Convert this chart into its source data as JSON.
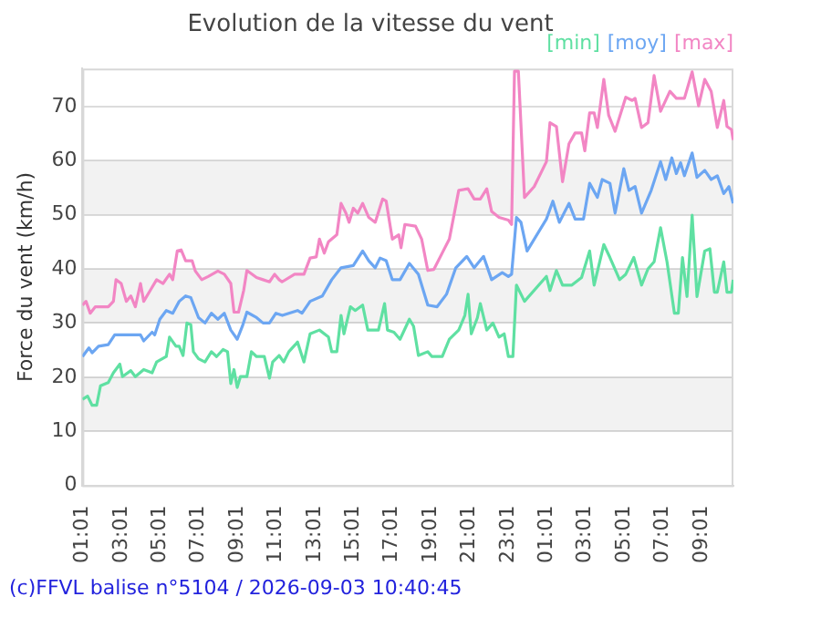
{
  "chart_data": {
    "type": "line",
    "title": "Evolution de la vitesse du vent",
    "ylabel": "Force du vent (km/h)",
    "annotations": [
      "(c)FFVL balise n°5104 / 2026-09-03 10:40:45"
    ],
    "xlim": [
      "2026-09-02T01:01",
      "2026-09-03T10:40"
    ],
    "xticks": [
      {
        "value": "2026-09-02T01:01",
        "label": "01:01"
      },
      {
        "value": "2026-09-02T03:01",
        "label": "03:01"
      },
      {
        "value": "2026-09-02T05:01",
        "label": "05:01"
      },
      {
        "value": "2026-09-02T07:01",
        "label": "07:01"
      },
      {
        "value": "2026-09-02T09:01",
        "label": "09:01"
      },
      {
        "value": "2026-09-02T11:01",
        "label": "11:01"
      },
      {
        "value": "2026-09-02T13:01",
        "label": "13:01"
      },
      {
        "value": "2026-09-02T15:01",
        "label": "15:01"
      },
      {
        "value": "2026-09-02T17:01",
        "label": "17:01"
      },
      {
        "value": "2026-09-02T19:01",
        "label": "19:01"
      },
      {
        "value": "2026-09-02T21:01",
        "label": "21:01"
      },
      {
        "value": "2026-09-02T23:01",
        "label": "23:01"
      },
      {
        "value": "2026-09-03T01:01",
        "label": "01:01"
      },
      {
        "value": "2026-09-03T03:01",
        "label": "03:01"
      },
      {
        "value": "2026-09-03T05:01",
        "label": "05:01"
      },
      {
        "value": "2026-09-03T07:01",
        "label": "07:01"
      },
      {
        "value": "2026-09-03T09:01",
        "label": "09:01"
      }
    ],
    "ylim": [
      0,
      77
    ],
    "yticks": [
      0,
      10,
      20,
      30,
      40,
      50,
      60,
      70
    ],
    "grid": "y",
    "legend": "top right",
    "marker": "none",
    "line_style": "solid",
    "series": [
      {
        "name": "[min]",
        "color": "#5fe0a2",
        "x": [
          "2026-09-02T01:01",
          "2026-09-02T01:17",
          "2026-09-02T01:31",
          "2026-09-02T01:45",
          "2026-09-02T01:57",
          "2026-09-02T02:21",
          "2026-09-02T02:37",
          "2026-09-02T02:57",
          "2026-09-02T03:05",
          "2026-09-02T03:31",
          "2026-09-02T03:45",
          "2026-09-02T04:11",
          "2026-09-02T04:37",
          "2026-09-02T04:51",
          "2026-09-02T05:21",
          "2026-09-02T05:31",
          "2026-09-02T05:51",
          "2026-09-02T06:01",
          "2026-09-02T06:13",
          "2026-09-02T06:25",
          "2026-09-02T06:37",
          "2026-09-02T06:45",
          "2026-09-02T07:01",
          "2026-09-02T07:21",
          "2026-09-02T07:41",
          "2026-09-02T07:57",
          "2026-09-02T08:17",
          "2026-09-02T08:31",
          "2026-09-02T08:41",
          "2026-09-02T08:51",
          "2026-09-02T09:01",
          "2026-09-02T09:11",
          "2026-09-02T09:31",
          "2026-09-02T09:45",
          "2026-09-02T10:01",
          "2026-09-02T10:25",
          "2026-09-02T10:41",
          "2026-09-02T10:51",
          "2026-09-02T11:11",
          "2026-09-02T11:25",
          "2026-09-02T11:41",
          "2026-09-02T12:01",
          "2026-09-02T12:08",
          "2026-09-02T12:28",
          "2026-09-02T12:47",
          "2026-09-02T13:16",
          "2026-09-02T13:44",
          "2026-09-02T13:54",
          "2026-09-02T14:10",
          "2026-09-02T14:23",
          "2026-09-02T14:32",
          "2026-09-02T14:52",
          "2026-09-02T15:07",
          "2026-09-02T15:30",
          "2026-09-02T15:46",
          "2026-09-02T16:19",
          "2026-09-02T16:38",
          "2026-09-02T16:47",
          "2026-09-02T17:07",
          "2026-09-02T17:26",
          "2026-09-02T17:55",
          "2026-09-02T18:08",
          "2026-09-02T18:23",
          "2026-09-02T18:52",
          "2026-09-02T19:05",
          "2026-09-02T19:37",
          "2026-09-02T19:59",
          "2026-09-02T20:28",
          "2026-09-02T20:47",
          "2026-09-02T20:57",
          "2026-09-02T21:07",
          "2026-09-02T21:26",
          "2026-09-02T21:35",
          "2026-09-02T21:55",
          "2026-09-02T22:14",
          "2026-09-02T22:33",
          "2026-09-02T22:49",
          "2026-09-02T23:02",
          "2026-09-02T23:16",
          "2026-09-02T23:27",
          "2026-09-02T23:52",
          "2026-09-03T01:00",
          "2026-09-03T01:11",
          "2026-09-03T01:31",
          "2026-09-03T01:50",
          "2026-09-03T02:19",
          "2026-09-03T02:49",
          "2026-09-03T03:14",
          "2026-09-03T03:28",
          "2026-09-03T03:58",
          "2026-09-03T04:17",
          "2026-09-03T04:47",
          "2026-09-03T05:06",
          "2026-09-03T05:31",
          "2026-09-03T05:55",
          "2026-09-03T06:15",
          "2026-09-03T06:34",
          "2026-09-03T06:54",
          "2026-09-03T07:14",
          "2026-09-03T07:37",
          "2026-09-03T07:49",
          "2026-09-03T08:02",
          "2026-09-03T08:16",
          "2026-09-03T08:32",
          "2026-09-03T08:47",
          "2026-09-03T09:11",
          "2026-09-03T09:27",
          "2026-09-03T09:41",
          "2026-09-03T09:50",
          "2026-09-03T10:10",
          "2026-09-03T10:20",
          "2026-09-03T10:34",
          "2026-09-03T10:39"
        ],
        "values": [
          15.9,
          16.5,
          14.8,
          14.8,
          18.4,
          19,
          20.8,
          22.4,
          20.1,
          21.2,
          20.1,
          21.4,
          20.8,
          22.8,
          23.8,
          27.4,
          25.7,
          25.7,
          24,
          30,
          29.7,
          24.7,
          23.4,
          22.8,
          24.7,
          23.8,
          25.1,
          24.7,
          18.8,
          21.4,
          18.1,
          20.1,
          20.1,
          24.7,
          23.8,
          23.8,
          19.8,
          22.8,
          24,
          22.8,
          24.7,
          26,
          26.5,
          22.8,
          28,
          28.7,
          27.4,
          24.7,
          24.7,
          31.4,
          28,
          33,
          32.3,
          33.3,
          28.7,
          28.7,
          33.6,
          28.7,
          28.3,
          27,
          30.7,
          29.4,
          24,
          24.7,
          23.8,
          23.8,
          27,
          28.7,
          31.4,
          35.3,
          28,
          31,
          33.6,
          28.7,
          30,
          27.4,
          28,
          23.8,
          23.8,
          37,
          34,
          38.6,
          36,
          39.7,
          37,
          37,
          38.4,
          43.3,
          37,
          44.5,
          42.1,
          38,
          39,
          42.1,
          37,
          40,
          41.3,
          47.6,
          41.3,
          31.8,
          31.8,
          42.1,
          34.9,
          49.9,
          34.9,
          43.3,
          43.7,
          35.7,
          35.7,
          41.3,
          35.7,
          35.7,
          38
        ]
      },
      {
        "name": "[moy]",
        "color": "#6ca6f2",
        "x": [
          "2026-09-02T01:01",
          "2026-09-02T01:21",
          "2026-09-02T01:31",
          "2026-09-02T01:51",
          "2026-09-02T02:21",
          "2026-09-02T02:41",
          "2026-09-02T04:01",
          "2026-09-02T04:11",
          "2026-09-02T04:37",
          "2026-09-02T04:45",
          "2026-09-02T05:01",
          "2026-09-02T05:21",
          "2026-09-02T05:41",
          "2026-09-02T06:01",
          "2026-09-02T06:21",
          "2026-09-02T06:37",
          "2026-09-02T07:01",
          "2026-09-02T07:21",
          "2026-09-02T07:41",
          "2026-09-02T08:01",
          "2026-09-02T08:21",
          "2026-09-02T08:41",
          "2026-09-02T09:01",
          "2026-09-02T09:17",
          "2026-09-02T09:31",
          "2026-09-02T10:01",
          "2026-09-02T10:21",
          "2026-09-02T10:41",
          "2026-09-02T11:01",
          "2026-09-02T11:21",
          "2026-09-02T12:08",
          "2026-09-02T12:22",
          "2026-09-02T12:47",
          "2026-09-02T13:25",
          "2026-09-02T13:54",
          "2026-09-02T14:23",
          "2026-09-02T15:01",
          "2026-09-02T15:30",
          "2026-09-02T15:49",
          "2026-09-02T16:09",
          "2026-09-02T16:24",
          "2026-09-02T16:43",
          "2026-09-02T17:02",
          "2026-09-02T17:26",
          "2026-09-02T17:55",
          "2026-09-02T18:23",
          "2026-09-02T18:52",
          "2026-09-02T19:21",
          "2026-09-02T19:50",
          "2026-09-02T20:19",
          "2026-09-02T20:53",
          "2026-09-02T21:16",
          "2026-09-02T21:45",
          "2026-09-02T22:10",
          "2026-09-02T22:43",
          "2026-09-02T23:02",
          "2026-09-02T23:12",
          "2026-09-02T23:27",
          "2026-09-02T23:41",
          "2026-09-03T00:00",
          "2026-09-03T01:00",
          "2026-09-03T01:20",
          "2026-09-03T01:40",
          "2026-09-03T02:10",
          "2026-09-03T02:29",
          "2026-09-03T02:55",
          "2026-09-03T03:14",
          "2026-09-03T03:38",
          "2026-09-03T03:53",
          "2026-09-03T04:17",
          "2026-09-03T04:33",
          "2026-09-03T05:00",
          "2026-09-03T05:16",
          "2026-09-03T05:35",
          "2026-09-03T05:55",
          "2026-09-03T06:25",
          "2026-09-03T06:54",
          "2026-09-03T07:10",
          "2026-09-03T07:29",
          "2026-09-03T07:43",
          "2026-09-03T07:56",
          "2026-09-03T08:08",
          "2026-09-03T08:32",
          "2026-09-03T08:47",
          "2026-09-03T09:11",
          "2026-09-03T09:31",
          "2026-09-03T09:50",
          "2026-09-03T10:10",
          "2026-09-03T10:26",
          "2026-09-03T10:39"
        ],
        "values": [
          23.8,
          25.4,
          24.5,
          25.7,
          26,
          27.8,
          27.8,
          26.7,
          28.3,
          27.8,
          30.7,
          32.3,
          31.8,
          34,
          35,
          34.7,
          31,
          30,
          31.8,
          30.7,
          31.8,
          28.7,
          27,
          29.4,
          32,
          31,
          30,
          30,
          31.8,
          31.4,
          32.3,
          31.8,
          34,
          35,
          38,
          40.2,
          40.6,
          43.3,
          41.5,
          40.2,
          42,
          41.5,
          38,
          38,
          41,
          39,
          33.3,
          33,
          35.3,
          40.2,
          42.3,
          40.2,
          42.3,
          38,
          39.3,
          38.6,
          39,
          49.5,
          48.6,
          43.3,
          49.2,
          52.5,
          48.6,
          52.1,
          49.2,
          49.2,
          55.8,
          53.2,
          56.5,
          55.8,
          50.3,
          58.5,
          54.5,
          55.2,
          50.3,
          54.5,
          59.8,
          56.5,
          60.5,
          57.6,
          59.6,
          57.2,
          61.4,
          56.9,
          58.2,
          56.5,
          57.2,
          53.9,
          55.2,
          52.1
        ]
      },
      {
        "name": "[max]",
        "color": "#f286c4",
        "x": [
          "2026-09-02T01:01",
          "2026-09-02T01:12",
          "2026-09-02T01:25",
          "2026-09-02T01:41",
          "2026-09-02T02:21",
          "2026-09-02T02:37",
          "2026-09-02T02:45",
          "2026-09-02T03:01",
          "2026-09-02T03:17",
          "2026-09-02T03:31",
          "2026-09-02T03:45",
          "2026-09-02T04:01",
          "2026-09-02T04:11",
          "2026-09-02T04:31",
          "2026-09-02T04:51",
          "2026-09-02T05:11",
          "2026-09-02T05:31",
          "2026-09-02T05:41",
          "2026-09-02T05:55",
          "2026-09-02T06:07",
          "2026-09-02T06:21",
          "2026-09-02T06:41",
          "2026-09-02T06:51",
          "2026-09-02T07:11",
          "2026-09-02T07:31",
          "2026-09-02T08:01",
          "2026-09-02T08:21",
          "2026-09-02T08:41",
          "2026-09-02T08:51",
          "2026-09-02T09:05",
          "2026-09-02T09:21",
          "2026-09-02T09:31",
          "2026-09-02T10:01",
          "2026-09-02T10:21",
          "2026-09-02T10:41",
          "2026-09-02T10:57",
          "2026-09-02T11:11",
          "2026-09-02T11:20",
          "2026-09-02T11:59",
          "2026-09-02T12:28",
          "2026-09-02T12:47",
          "2026-09-02T13:06",
          "2026-09-02T13:16",
          "2026-09-02T13:31",
          "2026-09-02T13:44",
          "2026-09-02T14:10",
          "2026-09-02T14:23",
          "2026-09-02T14:38",
          "2026-09-02T14:48",
          "2026-09-02T15:01",
          "2026-09-02T15:15",
          "2026-09-02T15:30",
          "2026-09-02T15:49",
          "2026-09-02T16:09",
          "2026-09-02T16:32",
          "2026-09-02T16:43",
          "2026-09-02T17:02",
          "2026-09-02T17:22",
          "2026-09-02T17:29",
          "2026-09-02T17:41",
          "2026-09-02T18:14",
          "2026-09-02T18:33",
          "2026-09-02T18:52",
          "2026-09-02T19:11",
          "2026-09-02T19:40",
          "2026-09-02T19:59",
          "2026-09-02T20:28",
          "2026-09-02T20:57",
          "2026-09-02T21:16",
          "2026-09-02T21:35",
          "2026-09-02T21:55",
          "2026-09-02T22:10",
          "2026-09-02T22:33",
          "2026-09-02T23:02",
          "2026-09-02T23:12",
          "2026-09-02T23:21",
          "2026-09-02T23:33",
          "2026-09-02T23:52",
          "2026-09-03T00:22",
          "2026-09-03T01:00",
          "2026-09-03T01:11",
          "2026-09-03T01:31",
          "2026-09-03T01:50",
          "2026-09-03T02:10",
          "2026-09-03T02:29",
          "2026-09-03T02:49",
          "2026-09-03T02:59",
          "2026-09-03T03:14",
          "2026-09-03T03:28",
          "2026-09-03T03:38",
          "2026-09-03T03:58",
          "2026-09-03T04:13",
          "2026-09-03T04:33",
          "2026-09-03T05:06",
          "2026-09-03T05:26",
          "2026-09-03T05:35",
          "2026-09-03T05:55",
          "2026-09-03T06:15",
          "2026-09-03T06:34",
          "2026-09-03T06:54",
          "2026-09-03T07:23",
          "2026-09-03T07:43",
          "2026-09-03T08:08",
          "2026-09-03T08:32",
          "2026-09-03T08:52",
          "2026-09-03T09:11",
          "2026-09-03T09:31",
          "2026-09-03T09:50",
          "2026-09-03T10:10",
          "2026-09-03T10:20",
          "2026-09-03T10:34",
          "2026-09-03T10:39"
        ],
        "values": [
          33.3,
          34,
          31.8,
          33,
          33,
          34,
          38,
          37.3,
          34,
          35,
          33,
          37.3,
          34,
          36,
          38,
          37.3,
          39,
          38,
          43.3,
          43.5,
          41.5,
          41.5,
          39.6,
          38,
          38.6,
          39.6,
          39,
          37.3,
          32,
          32,
          36,
          39.7,
          38.4,
          38,
          37.6,
          39,
          38,
          37.6,
          39,
          39,
          42,
          42.2,
          45.5,
          42.9,
          45,
          46.3,
          52.1,
          50.3,
          48.6,
          51.2,
          50.3,
          52.1,
          49.5,
          48.6,
          52.9,
          52.5,
          45.5,
          46.3,
          43.9,
          48.2,
          47.9,
          45.5,
          39.7,
          39.9,
          43.3,
          45.5,
          54.5,
          54.8,
          52.9,
          52.9,
          54.8,
          50.6,
          49.5,
          49,
          48.2,
          76.5,
          76.5,
          53.2,
          55.2,
          59.8,
          67,
          66.3,
          56.1,
          63.1,
          65.1,
          65.1,
          61.8,
          68.8,
          68.8,
          66.1,
          75,
          68.4,
          65.4,
          71.7,
          71.1,
          71.5,
          66.1,
          67,
          75.7,
          69.1,
          72.8,
          71.5,
          71.5,
          76.4,
          70.1,
          75,
          72.8,
          66.1,
          71.1,
          66.3,
          65.7,
          63.8
        ]
      }
    ]
  }
}
